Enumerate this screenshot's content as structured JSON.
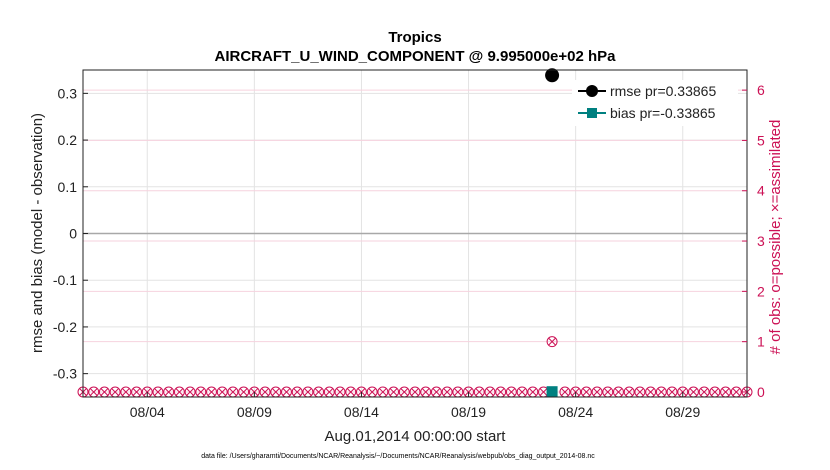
{
  "chart_data": {
    "type": "line",
    "title": "Tropics",
    "subtitle": "AIRCRAFT_U_WIND_COMPONENT @ 9.995000e+02 hPa",
    "xlabel": "Aug.01,2014 00:00:00 start",
    "ylabel": "rmse and bias (model - observation)",
    "y2label": "# of obs: o=possible; ×=assimilated",
    "footnote": "data file: /Users/gharamti/Documents/NCAR/Reanalysis/~/Documents/NCAR/Reanalysis/webpub/obs_diag_output_2014-08.nc",
    "x_ticks": [
      4,
      9,
      14,
      19,
      24,
      29
    ],
    "x_tick_labels": [
      "08/04",
      "08/09",
      "08/14",
      "08/19",
      "08/24",
      "08/29"
    ],
    "xlim": [
      1,
      32
    ],
    "ylim": [
      -0.35,
      0.35
    ],
    "y_ticks": [
      -0.3,
      -0.2,
      -0.1,
      0,
      0.1,
      0.2,
      0.3
    ],
    "y_tick_labels": [
      "-0.3",
      "-0.2",
      "-0.1",
      "0",
      "0.1",
      "0.2",
      "0.3"
    ],
    "y2lim": [
      -0.1,
      6.4
    ],
    "y2_ticks": [
      0,
      1,
      2,
      3,
      4,
      5,
      6
    ],
    "y2_tick_labels": [
      "0",
      "1",
      "2",
      "3",
      "4",
      "5",
      "6"
    ],
    "grid": true,
    "legend_position": "top-right",
    "series": [
      {
        "name": "rmse pr=0.33865",
        "color": "#000000",
        "marker": "circle",
        "x": [
          22.9
        ],
        "y": [
          0.33865
        ]
      },
      {
        "name": "bias pr=-0.33865",
        "color": "#008080",
        "marker": "square",
        "x": [
          22.9
        ],
        "y": [
          -0.33865
        ]
      }
    ],
    "obs_count": {
      "color": "#cc1155",
      "x_start": 1,
      "x_end": 32,
      "step": 0.5,
      "value": 0,
      "nonzero": [
        {
          "x": 22.9,
          "value": 1
        }
      ]
    }
  }
}
